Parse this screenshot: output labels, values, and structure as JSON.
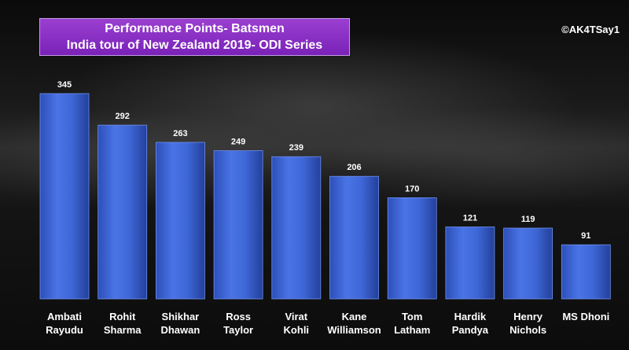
{
  "header": {
    "title_line1": "Performance  Points- Batsmen",
    "title_line2": "India tour of New Zealand 2019- ODI Series",
    "credit": "©AK4TSay1"
  },
  "colors": {
    "bar": "#3e66d6",
    "bar_dark": "#23409a",
    "title_bg": "#8a2fc6"
  },
  "chart_data": {
    "type": "bar",
    "title": "Performance  Points- Batsmen India tour of New Zealand 2019- ODI Series",
    "categories": [
      [
        "Ambati",
        "Rayudu"
      ],
      [
        "Rohit",
        "Sharma"
      ],
      [
        "Shikhar",
        "Dhawan"
      ],
      [
        "Ross",
        "Taylor"
      ],
      [
        "Virat",
        "Kohli"
      ],
      [
        "Kane",
        "Williamson"
      ],
      [
        "Tom",
        "Latham"
      ],
      [
        "Hardik",
        "Pandya"
      ],
      [
        "Henry",
        "Nichols"
      ],
      [
        "MS Dhoni"
      ]
    ],
    "values": [
      345,
      292,
      263,
      249,
      239,
      206,
      170,
      121,
      119,
      91
    ],
    "ylim": [
      0,
      345
    ],
    "grid": false,
    "legend": "none",
    "xlabel": "",
    "ylabel": ""
  }
}
